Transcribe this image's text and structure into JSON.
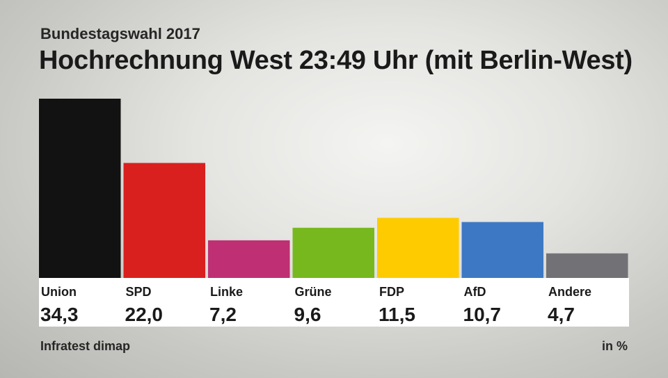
{
  "header": {
    "subtitle": "Bundestagswahl 2017",
    "title": "Hochrechnung West 23:49 Uhr (mit Berlin-West)"
  },
  "footer": {
    "source": "Infratest dimap",
    "unit": "in %"
  },
  "chart_data": {
    "type": "bar",
    "categories": [
      "Union",
      "SPD",
      "Linke",
      "Grüne",
      "FDP",
      "AfD",
      "Andere"
    ],
    "values": [
      34.3,
      22.0,
      7.2,
      9.6,
      11.5,
      10.7,
      4.7
    ],
    "value_labels": [
      "34,3",
      "22,0",
      "7,2",
      "9,6",
      "11,5",
      "10,7",
      "4,7"
    ],
    "colors": [
      "#121212",
      "#d9201e",
      "#bf2f73",
      "#78b81f",
      "#fecb00",
      "#3d78c4",
      "#727276"
    ],
    "ylim": [
      0,
      34.3
    ],
    "grid": false
  }
}
